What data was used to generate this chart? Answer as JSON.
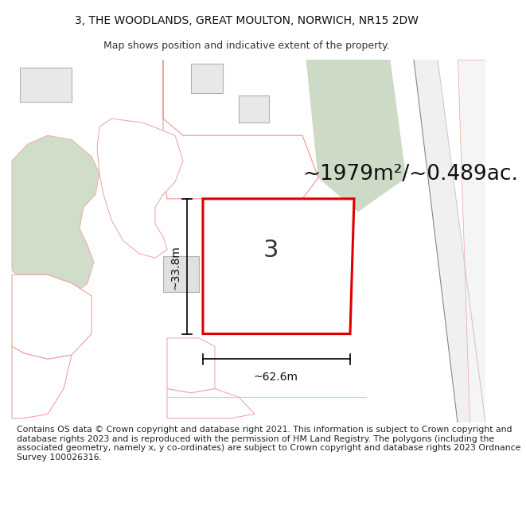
{
  "title_line1": "3, THE WOODLANDS, GREAT MOULTON, NORWICH, NR15 2DW",
  "title_line2": "Map shows position and indicative extent of the property.",
  "area_text": "~1979m²/~0.489ac.",
  "number_label": "3",
  "dim_width": "~62.6m",
  "dim_height": "~33.8m",
  "footer_text": "Contains OS data © Crown copyright and database right 2021. This information is subject to Crown copyright and database rights 2023 and is reproduced with the permission of HM Land Registry. The polygons (including the associated geometry, namely x, y co-ordinates) are subject to Crown copyright and database rights 2023 Ordnance Survey 100026316.",
  "bg_color": "#ffffff",
  "main_plot_color": "#dd0000",
  "neighbor_color": "#f0a0a0",
  "green_fill": "#c8d8c0",
  "gray_fill": "#d8d8d8",
  "title_fontsize": 10,
  "subtitle_fontsize": 9,
  "area_fontsize": 19,
  "number_fontsize": 22,
  "dim_fontsize": 10,
  "footer_fontsize": 7.8
}
